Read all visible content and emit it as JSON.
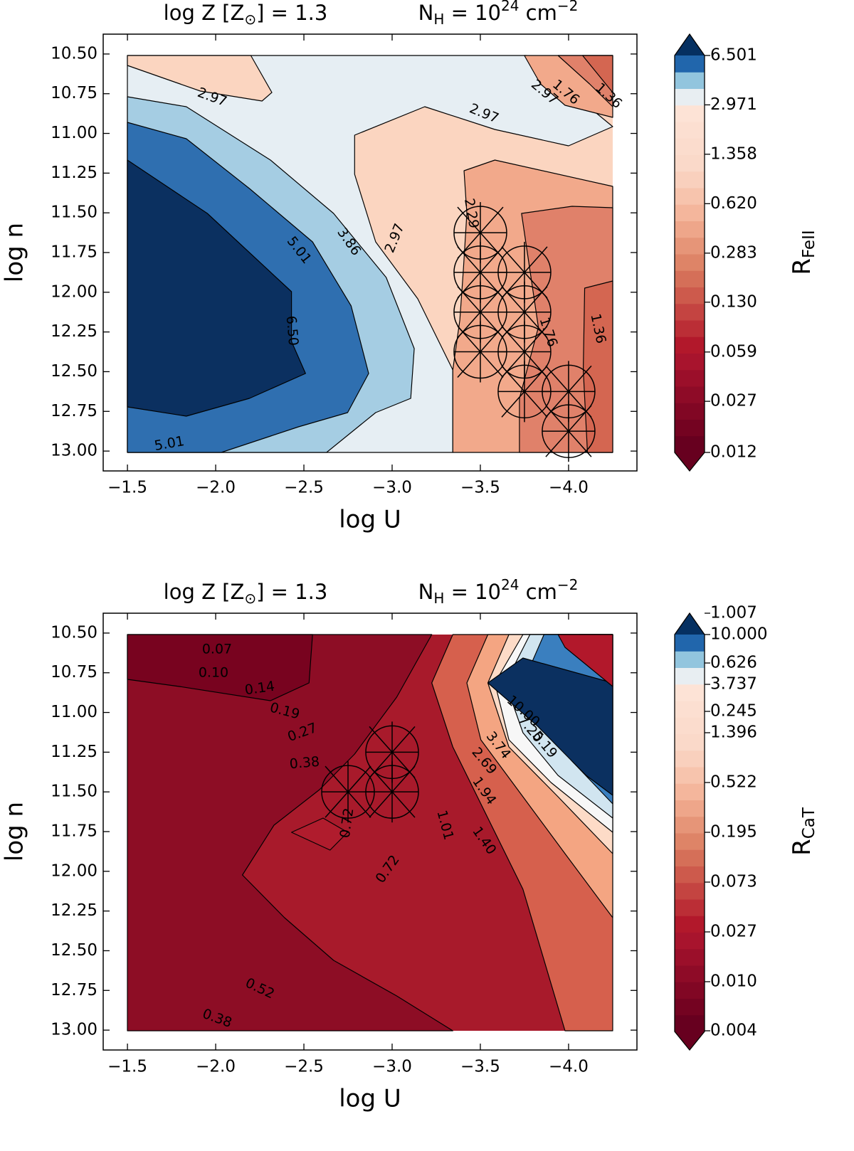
{
  "chart_data": [
    {
      "type": "contour",
      "title_left": [
        "log Z [Z",
        "⊙",
        "] = 1.3"
      ],
      "title_right": [
        "N",
        "H",
        " = 10",
        "24",
        " cm",
        "−2"
      ],
      "xlabel": "log U",
      "ylabel": "log n",
      "cbar_label": [
        "R",
        "FeII"
      ],
      "xlim": [
        -1.3625,
        -4.3875
      ],
      "ylim": [
        13.125,
        10.375
      ],
      "xticks": [
        {
          "value": -1.5,
          "label": "−1.5"
        },
        {
          "value": -2.0,
          "label": "−2.0"
        },
        {
          "value": -2.5,
          "label": "−2.5"
        },
        {
          "value": -3.0,
          "label": "−3.0"
        },
        {
          "value": -3.5,
          "label": "−3.5"
        },
        {
          "value": -4.0,
          "label": "−4.0"
        }
      ],
      "yticks": [
        {
          "value": 10.5,
          "label": "10.50"
        },
        {
          "value": 10.75,
          "label": "10.75"
        },
        {
          "value": 11.0,
          "label": "11.00"
        },
        {
          "value": 11.25,
          "label": "11.25"
        },
        {
          "value": 11.5,
          "label": "11.50"
        },
        {
          "value": 11.75,
          "label": "11.75"
        },
        {
          "value": 12.0,
          "label": "12.00"
        },
        {
          "value": 12.25,
          "label": "12.25"
        },
        {
          "value": 12.5,
          "label": "12.50"
        },
        {
          "value": 12.75,
          "label": "12.75"
        },
        {
          "value": 13.0,
          "label": "13.00"
        }
      ],
      "cbar_scale": "log",
      "cbar_lim": [
        0.012,
        6.501
      ],
      "cbar_ticks": [
        6.501,
        2.971,
        1.358,
        {
          "value": 0.62,
          "label": "0.620"
        },
        0.283,
        {
          "value": 0.13,
          "label": "0.130"
        },
        0.059,
        0.027,
        0.012
      ],
      "cbar_colors": [
        "#67001f",
        "#740321",
        "#810724",
        "#8e0b27",
        "#9b0f2a",
        "#a8142d",
        "#b2182b",
        "#bb2e36",
        "#c44441",
        "#cd5a4c",
        "#d56f58",
        "#de8467",
        "#e69578",
        "#eea68a",
        "#f4b69c",
        "#f7c4ad",
        "#f9d0bd",
        "#fad9c9",
        "#fbdccd",
        "#fcdfd1",
        "#fde3d6",
        "#e8eef2",
        "#92c5de",
        "#2166ac"
      ],
      "cbar_extend_colors": [
        "#67001f",
        "#053061"
      ],
      "points": {
        "x": [
          -3.5,
          -3.5,
          -3.5,
          -3.5,
          -3.75,
          -3.75,
          -3.75,
          -3.75,
          -4.0,
          -4.0
        ],
        "y": [
          11.625,
          11.875,
          12.125,
          12.375,
          11.875,
          12.125,
          12.375,
          12.625,
          12.625,
          12.875
        ]
      },
      "contour_labels": [
        "2.97",
        "2.97",
        "2.97",
        "3.86",
        "5.01",
        "6.50",
        "5.01",
        "2.97",
        "1.76",
        "1.36",
        "2.29",
        "1.76",
        "1.36"
      ]
    },
    {
      "type": "contour",
      "title_left": [
        "log Z [Z",
        "⊙",
        "] = 1.3"
      ],
      "title_right": [
        "N",
        "H",
        " = 10",
        "24",
        " cm",
        "−2"
      ],
      "xlabel": "log U",
      "ylabel": "log n",
      "cbar_label": [
        "R",
        "CaT"
      ],
      "xlim": [
        -1.3625,
        -4.3875
      ],
      "ylim": [
        13.125,
        10.375
      ],
      "xticks": [
        {
          "value": -1.5,
          "label": "−1.5"
        },
        {
          "value": -2.0,
          "label": "−2.0"
        },
        {
          "value": -2.5,
          "label": "−2.5"
        },
        {
          "value": -3.0,
          "label": "−3.0"
        },
        {
          "value": -3.5,
          "label": "−3.5"
        },
        {
          "value": -4.0,
          "label": "−4.0"
        }
      ],
      "yticks": [
        {
          "value": 10.5,
          "label": "10.50"
        },
        {
          "value": 10.75,
          "label": "10.75"
        },
        {
          "value": 11.0,
          "label": "11.00"
        },
        {
          "value": 11.25,
          "label": "11.25"
        },
        {
          "value": 11.5,
          "label": "11.50"
        },
        {
          "value": 11.75,
          "label": "11.75"
        },
        {
          "value": 12.0,
          "label": "12.00"
        },
        {
          "value": 12.25,
          "label": "12.25"
        },
        {
          "value": 12.5,
          "label": "12.50"
        },
        {
          "value": 12.75,
          "label": "12.75"
        },
        {
          "value": 13.0,
          "label": "13.00"
        }
      ],
      "cbar_ticks": [
        1.007,
        {
          "value": 10,
          "label": "10.000"
        },
        0.626,
        3.737,
        0.245,
        1.396,
        0.522,
        0.195,
        0.073,
        0.027,
        {
          "value": 0.01,
          "label": "0.010"
        },
        0.004
      ],
      "cbar_colors": [
        "#67001f",
        "#740321",
        "#810724",
        "#8e0b27",
        "#9b0f2a",
        "#a8142d",
        "#b2182b",
        "#bb2e36",
        "#c44441",
        "#cd5a4c",
        "#d56f58",
        "#de8467",
        "#e69578",
        "#eea68a",
        "#f4b69c",
        "#f7c4ad",
        "#f9d0bd",
        "#fad9c9",
        "#fbdccd",
        "#fcdfd1",
        "#fde3d6",
        "#e8eef2",
        "#92c5de",
        "#2166ac"
      ],
      "cbar_extend_colors": [
        "#67001f",
        "#053061"
      ],
      "points": {
        "x": [
          -2.75,
          -3.0,
          -3.0
        ],
        "y": [
          11.5,
          11.25,
          11.5
        ]
      },
      "contour_labels": [
        "0.07",
        "0.10",
        "0.14",
        "0.19",
        "0.27",
        "0.38",
        "0.72",
        "0.72",
        "1.01",
        "1.40",
        "1.94",
        "2.69",
        "3.74",
        "5.19",
        "7.20",
        "10.00",
        "0.52",
        "0.38"
      ]
    }
  ]
}
